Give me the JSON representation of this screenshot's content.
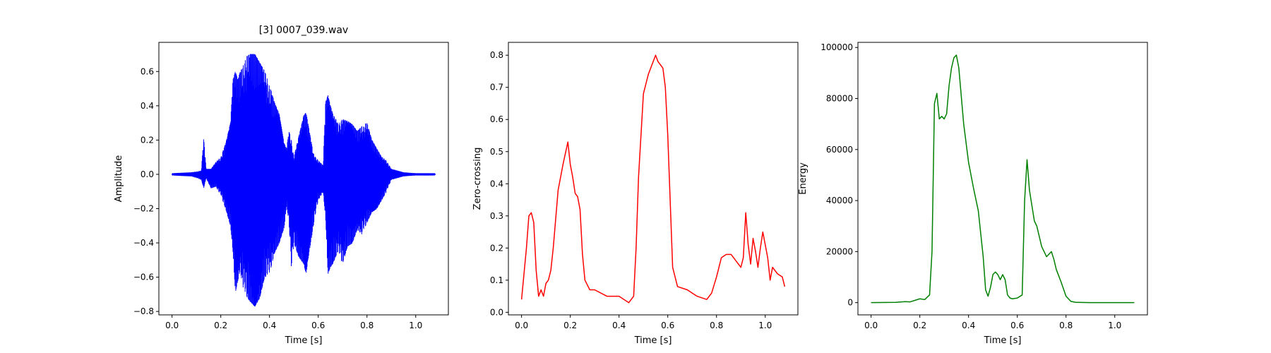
{
  "figure": {
    "background": "#ffffff"
  },
  "chart_data": [
    {
      "type": "line",
      "title": "[3] 0007_039.wav",
      "xlabel": "Time [s]",
      "ylabel": "Amplitude",
      "xlim": [
        -0.054,
        1.134
      ],
      "ylim": [
        -0.82,
        0.77
      ],
      "xticks": [
        0.0,
        0.2,
        0.4,
        0.6,
        0.8,
        1.0
      ],
      "xtick_labels": [
        "0.0",
        "0.2",
        "0.4",
        "0.6",
        "0.8",
        "1.0"
      ],
      "yticks": [
        -0.8,
        -0.6,
        -0.4,
        -0.2,
        0.0,
        0.2,
        0.4,
        0.6
      ],
      "ytick_labels": [
        "−0.8",
        "−0.6",
        "−0.4",
        "−0.2",
        "0.0",
        "0.2",
        "0.4",
        "0.6"
      ],
      "grid": false,
      "color": "#0000ff",
      "series": [
        {
          "style": "oscillating",
          "x": [
            0.0,
            0.08,
            0.12,
            0.13,
            0.14,
            0.16,
            0.18,
            0.2,
            0.22,
            0.24,
            0.25,
            0.26,
            0.27,
            0.28,
            0.29,
            0.3,
            0.32,
            0.34,
            0.36,
            0.38,
            0.4,
            0.42,
            0.44,
            0.46,
            0.47,
            0.48,
            0.49,
            0.5,
            0.52,
            0.54,
            0.55,
            0.56,
            0.58,
            0.6,
            0.62,
            0.63,
            0.64,
            0.65,
            0.66,
            0.68,
            0.7,
            0.72,
            0.74,
            0.76,
            0.78,
            0.8,
            0.82,
            0.84,
            0.86,
            0.88,
            0.9,
            0.95,
            1.0,
            1.08
          ],
          "upper": [
            0.005,
            0.01,
            0.02,
            0.21,
            0.03,
            0.03,
            0.07,
            0.1,
            0.18,
            0.3,
            0.55,
            0.6,
            0.55,
            0.6,
            0.62,
            0.68,
            0.7,
            0.7,
            0.65,
            0.6,
            0.52,
            0.42,
            0.35,
            0.18,
            0.15,
            0.25,
            0.2,
            0.1,
            0.22,
            0.34,
            0.36,
            0.28,
            0.12,
            0.08,
            0.05,
            0.42,
            0.46,
            0.4,
            0.35,
            0.3,
            0.32,
            0.31,
            0.29,
            0.25,
            0.28,
            0.3,
            0.2,
            0.15,
            0.1,
            0.08,
            0.03,
            0.01,
            0.005,
            0.005
          ],
          "lower": [
            -0.005,
            -0.01,
            -0.03,
            -0.08,
            -0.02,
            -0.08,
            -0.07,
            -0.12,
            -0.2,
            -0.3,
            -0.45,
            -0.69,
            -0.62,
            -0.56,
            -0.65,
            -0.7,
            -0.74,
            -0.77,
            -0.72,
            -0.6,
            -0.58,
            -0.46,
            -0.4,
            -0.31,
            -0.18,
            -0.28,
            -0.56,
            -0.4,
            -0.48,
            -0.52,
            -0.58,
            -0.48,
            -0.3,
            -0.15,
            -0.1,
            -0.25,
            -0.58,
            -0.54,
            -0.52,
            -0.45,
            -0.52,
            -0.42,
            -0.4,
            -0.32,
            -0.35,
            -0.28,
            -0.22,
            -0.2,
            -0.15,
            -0.1,
            -0.03,
            -0.01,
            -0.005,
            -0.005
          ]
        }
      ]
    },
    {
      "type": "line",
      "xlabel": "Time [s]",
      "ylabel": "Zero-crossing",
      "xlim": [
        -0.054,
        1.134
      ],
      "ylim": [
        -0.008,
        0.84
      ],
      "xticks": [
        0.0,
        0.2,
        0.4,
        0.6,
        0.8,
        1.0
      ],
      "xtick_labels": [
        "0.0",
        "0.2",
        "0.4",
        "0.6",
        "0.8",
        "1.0"
      ],
      "yticks": [
        0.0,
        0.1,
        0.2,
        0.3,
        0.4,
        0.5,
        0.6,
        0.7,
        0.8
      ],
      "ytick_labels": [
        "0.0",
        "0.1",
        "0.2",
        "0.3",
        "0.4",
        "0.5",
        "0.6",
        "0.7",
        "0.8"
      ],
      "grid": false,
      "color": "#ff0000",
      "series": [
        {
          "x": [
            0.0,
            0.01,
            0.02,
            0.03,
            0.04,
            0.05,
            0.06,
            0.07,
            0.08,
            0.09,
            0.1,
            0.11,
            0.12,
            0.13,
            0.15,
            0.17,
            0.19,
            0.2,
            0.21,
            0.22,
            0.23,
            0.24,
            0.25,
            0.26,
            0.28,
            0.3,
            0.35,
            0.4,
            0.44,
            0.46,
            0.47,
            0.48,
            0.5,
            0.52,
            0.54,
            0.55,
            0.56,
            0.57,
            0.58,
            0.59,
            0.6,
            0.62,
            0.64,
            0.68,
            0.72,
            0.76,
            0.78,
            0.8,
            0.82,
            0.84,
            0.86,
            0.88,
            0.9,
            0.91,
            0.92,
            0.93,
            0.94,
            0.95,
            0.96,
            0.97,
            0.98,
            0.99,
            1.0,
            1.01,
            1.02,
            1.03,
            1.05,
            1.07,
            1.08
          ],
          "y": [
            0.04,
            0.12,
            0.2,
            0.3,
            0.31,
            0.28,
            0.13,
            0.05,
            0.07,
            0.05,
            0.09,
            0.1,
            0.13,
            0.2,
            0.38,
            0.46,
            0.53,
            0.46,
            0.42,
            0.37,
            0.36,
            0.32,
            0.18,
            0.1,
            0.07,
            0.07,
            0.05,
            0.05,
            0.03,
            0.05,
            0.2,
            0.42,
            0.68,
            0.74,
            0.78,
            0.8,
            0.78,
            0.77,
            0.76,
            0.7,
            0.55,
            0.14,
            0.08,
            0.07,
            0.05,
            0.04,
            0.06,
            0.11,
            0.17,
            0.18,
            0.18,
            0.16,
            0.14,
            0.17,
            0.31,
            0.21,
            0.15,
            0.23,
            0.19,
            0.14,
            0.2,
            0.25,
            0.21,
            0.17,
            0.1,
            0.14,
            0.12,
            0.11,
            0.08
          ]
        }
      ]
    },
    {
      "type": "line",
      "xlabel": "Time [s]",
      "ylabel": "Energy",
      "xlim": [
        -0.054,
        1.134
      ],
      "ylim": [
        -4800,
        102000
      ],
      "xticks": [
        0.0,
        0.2,
        0.4,
        0.6,
        0.8,
        1.0
      ],
      "xtick_labels": [
        "0.0",
        "0.2",
        "0.4",
        "0.6",
        "0.8",
        "1.0"
      ],
      "yticks": [
        0,
        20000,
        40000,
        60000,
        80000,
        100000
      ],
      "ytick_labels": [
        "0",
        "20000",
        "40000",
        "60000",
        "80000",
        "100000"
      ],
      "grid": false,
      "color": "#008000",
      "series": [
        {
          "x": [
            0.0,
            0.1,
            0.14,
            0.16,
            0.2,
            0.22,
            0.24,
            0.25,
            0.26,
            0.27,
            0.28,
            0.29,
            0.3,
            0.31,
            0.32,
            0.33,
            0.34,
            0.35,
            0.36,
            0.38,
            0.4,
            0.42,
            0.44,
            0.46,
            0.47,
            0.48,
            0.49,
            0.5,
            0.51,
            0.52,
            0.53,
            0.54,
            0.55,
            0.56,
            0.57,
            0.58,
            0.6,
            0.62,
            0.63,
            0.64,
            0.65,
            0.66,
            0.67,
            0.68,
            0.7,
            0.72,
            0.74,
            0.75,
            0.76,
            0.78,
            0.8,
            0.82,
            0.84,
            0.9,
            1.0,
            1.08
          ],
          "y": [
            0,
            100,
            400,
            300,
            1500,
            1200,
            3000,
            20000,
            78000,
            82000,
            72000,
            73000,
            72000,
            74000,
            85000,
            92000,
            96000,
            97000,
            92000,
            70000,
            55000,
            45000,
            36000,
            18000,
            5000,
            2500,
            6000,
            11000,
            12000,
            11000,
            9000,
            11000,
            9000,
            3000,
            1800,
            1500,
            1800,
            3000,
            40000,
            56000,
            44000,
            38000,
            32000,
            30000,
            22000,
            18000,
            20000,
            17000,
            13000,
            8000,
            2500,
            500,
            100,
            0,
            0,
            0
          ]
        }
      ]
    }
  ]
}
